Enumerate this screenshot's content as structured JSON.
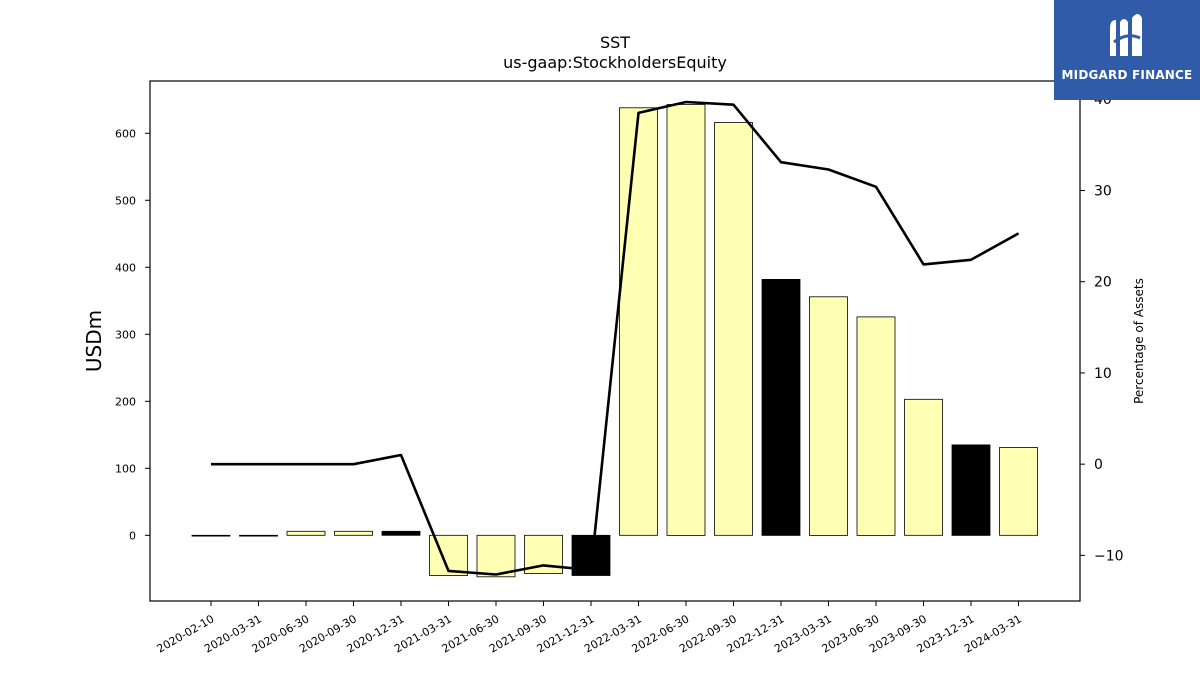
{
  "chart_data": {
    "type": "bar",
    "title": "SST",
    "subtitle": "us-gaap:StockholdersEquity",
    "ylabel": "USDm",
    "y2label": "Percentage of Assets",
    "ylim": [
      -98,
      678
    ],
    "y2lim": [
      -15,
      42
    ],
    "yticks": [
      0,
      100,
      200,
      300,
      400,
      500,
      600
    ],
    "y2ticks": [
      -10,
      0,
      10,
      20,
      30,
      40
    ],
    "categories": [
      "2020-02-10",
      "2020-03-31",
      "2020-06-30",
      "2020-09-30",
      "2020-12-31",
      "2021-03-31",
      "2021-06-30",
      "2021-09-30",
      "2021-12-31",
      "2022-03-31",
      "2022-06-30",
      "2022-09-30",
      "2022-12-31",
      "2023-03-31",
      "2023-06-30",
      "2023-09-30",
      "2023-12-31",
      "2024-03-31"
    ],
    "series": [
      {
        "type": "bar",
        "values": [
          -1,
          -1,
          6,
          6,
          6,
          -60,
          -62,
          -57,
          -60,
          638,
          643,
          616,
          382,
          356,
          326,
          203,
          135,
          131
        ],
        "colors": [
          "#ffffb3",
          "#ffffb3",
          "#ffffb3",
          "#ffffb3",
          "#000000",
          "#ffffb3",
          "#ffffb3",
          "#ffffb3",
          "#000000",
          "#ffffb3",
          "#ffffb3",
          "#ffffb3",
          "#000000",
          "#ffffb3",
          "#ffffb3",
          "#ffffb3",
          "#000000",
          "#ffffb3"
        ]
      },
      {
        "type": "line",
        "axis": "right",
        "values": [
          0,
          0,
          0,
          0,
          1,
          -11.7,
          -12.1,
          -11.1,
          -11.6,
          38.5,
          39.7,
          39.4,
          33.1,
          32.3,
          30.4,
          21.9,
          22.4,
          25.3
        ],
        "color": "#000000"
      }
    ],
    "grid": false,
    "legend": "none"
  },
  "logo": {
    "text": "MIDGARD FINANCE",
    "color": "#2f5ba8"
  }
}
